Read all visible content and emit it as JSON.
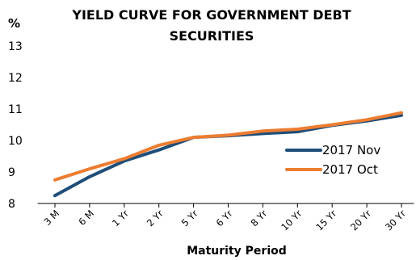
{
  "chart_data": {
    "type": "line",
    "title_line1": "YIELD CURVE FOR GOVERNMENT DEBT",
    "title_line2": "SECURITIES",
    "ylabel": "%",
    "xlabel": "Maturity Period",
    "categories": [
      "3 M",
      "6 M",
      "1 Yr",
      "2 Yr",
      "5 Yr",
      "6 Yr",
      "8 Yr",
      "10 Yr",
      "15 Yr",
      "20 Yr",
      "30 Yr"
    ],
    "ylim": [
      8,
      13
    ],
    "yticks": [
      "8",
      "9",
      "10",
      "11",
      "12",
      "13"
    ],
    "grid": false,
    "legend_position": "right",
    "series": [
      {
        "name": "2017 Nov",
        "color": "#1f4e79",
        "values": [
          8.25,
          8.85,
          9.35,
          9.7,
          10.1,
          10.15,
          10.22,
          10.28,
          10.48,
          10.62,
          10.8
        ]
      },
      {
        "name": "2017 Oct",
        "color": "#ed7d31",
        "values": [
          8.75,
          9.1,
          9.42,
          9.85,
          10.1,
          10.17,
          10.3,
          10.36,
          10.5,
          10.66,
          10.88
        ]
      }
    ]
  }
}
